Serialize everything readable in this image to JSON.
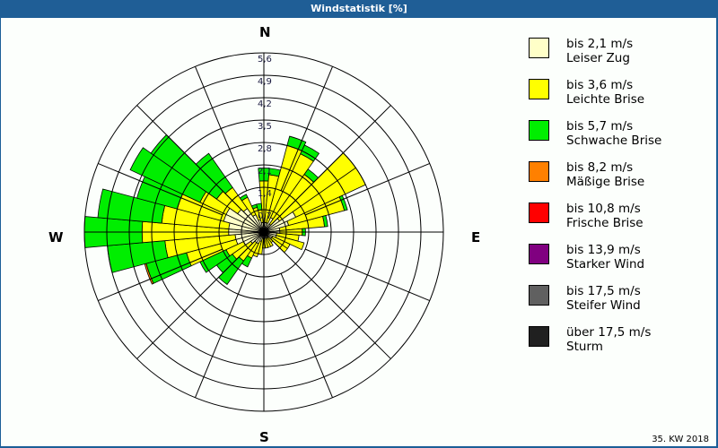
{
  "window": {
    "title": "Windstatistik [%]"
  },
  "compass": {
    "n": "N",
    "e": "E",
    "s": "S",
    "w": "W"
  },
  "footer": {
    "week": "35. KW 2018"
  },
  "legend": [
    {
      "range": "bis 2,1 m/s",
      "name": "Leiser Zug",
      "color": "#ffffc8"
    },
    {
      "range": "bis 3,6 m/s",
      "name": "Leichte Brise",
      "color": "#ffff00"
    },
    {
      "range": "bis 5,7 m/s",
      "name": "Schwache Brise",
      "color": "#00ee00"
    },
    {
      "range": "bis 8,2 m/s",
      "name": "Mäßige Brise",
      "color": "#ff8000"
    },
    {
      "range": "bis 10,8 m/s",
      "name": "Frische Brise",
      "color": "#ff0000"
    },
    {
      "range": "bis 13,9 m/s",
      "name": "Starker Wind",
      "color": "#800080"
    },
    {
      "range": "bis 17,5 m/s",
      "name": "Steifer Wind",
      "color": "#606060"
    },
    {
      "range": "über 17,5 m/s",
      "name": "Sturm",
      "color": "#202020"
    }
  ],
  "chart_data": {
    "type": "polar-stacked-bar",
    "title": "Windstatistik [%]",
    "subtitle": "35. KW 2018",
    "rlabels": [
      "0,7",
      "1,4",
      "2,1",
      "2,8",
      "3,5",
      "4,2",
      "4,9",
      "5,6"
    ],
    "rlim": [
      0,
      5.6
    ],
    "grid": true,
    "sector_width_deg": 10,
    "directions_deg": [
      0,
      10,
      20,
      30,
      40,
      50,
      60,
      70,
      80,
      90,
      100,
      110,
      120,
      130,
      140,
      150,
      160,
      170,
      180,
      190,
      200,
      210,
      220,
      230,
      240,
      250,
      260,
      270,
      280,
      290,
      300,
      310,
      320,
      330,
      340,
      350
    ],
    "series": [
      {
        "name": "bis 2,1 m/s (Leiser Zug)",
        "values": [
          0.3,
          0.3,
          0.3,
          0.5,
          0.3,
          0.6,
          1.1,
          0.8,
          0.5,
          0.5,
          0.4,
          0.4,
          0.3,
          0.3,
          0.2,
          0.2,
          0.2,
          0.2,
          0.2,
          0.2,
          0.3,
          0.4,
          0.4,
          0.5,
          0.7,
          0.9,
          0.9,
          1.1,
          1.1,
          1.3,
          1.3,
          1.0,
          0.9,
          0.6,
          0.4,
          0.3
        ]
      },
      {
        "name": "bis 3,6 m/s (Leichte Brise)",
        "values": [
          1.3,
          1.5,
          2.5,
          2.2,
          1.9,
          2.9,
          2.4,
          1.8,
          1.4,
          0.7,
          0.7,
          0.9,
          0.6,
          0.6,
          0.2,
          0.3,
          0.3,
          0.3,
          0.3,
          0.5,
          0.5,
          0.5,
          0.7,
          0.7,
          0.6,
          1.6,
          2.2,
          2.7,
          2.1,
          1.5,
          0.9,
          0.8,
          0.8,
          0.6,
          0.4,
          0.4
        ]
      },
      {
        "name": "bis 5,7 m/s (Schwache Brise)",
        "values": [
          0.4,
          0.2,
          0.3,
          0.3,
          0.2,
          0.0,
          0.0,
          0.1,
          0.1,
          0.1,
          0.0,
          0.0,
          0.0,
          0.0,
          0.0,
          0.0,
          0.0,
          0.0,
          0.0,
          0.0,
          0.0,
          0.3,
          0.9,
          0.6,
          0.9,
          1.3,
          1.8,
          1.8,
          2.0,
          1.3,
          2.4,
          2.5,
          1.3,
          0.1,
          0.1,
          0.2
        ]
      },
      {
        "name": "bis 8,2 m/s (Mäßige Brise)",
        "values": [
          0,
          0,
          0,
          0,
          0,
          0,
          0,
          0,
          0,
          0,
          0,
          0,
          0,
          0,
          0,
          0,
          0,
          0,
          0,
          0,
          0,
          0,
          0,
          0,
          0,
          0.05,
          0,
          0,
          0,
          0,
          0,
          0,
          0,
          0,
          0,
          0
        ]
      },
      {
        "name": "bis 10,8 m/s (Frische Brise)",
        "values": [
          0,
          0,
          0,
          0,
          0,
          0,
          0,
          0,
          0,
          0,
          0,
          0,
          0,
          0,
          0,
          0,
          0,
          0,
          0,
          0,
          0,
          0,
          0,
          0,
          0,
          0,
          0,
          0,
          0,
          0,
          0,
          0,
          0,
          0,
          0,
          0
        ]
      },
      {
        "name": "bis 13,9 m/s (Starker Wind)",
        "values": [
          0,
          0,
          0,
          0,
          0,
          0,
          0,
          0,
          0,
          0,
          0,
          0,
          0,
          0,
          0,
          0,
          0,
          0,
          0,
          0,
          0,
          0,
          0,
          0,
          0,
          0,
          0,
          0,
          0,
          0,
          0,
          0,
          0,
          0,
          0,
          0
        ]
      },
      {
        "name": "bis 17,5 m/s (Steifer Wind)",
        "values": [
          0,
          0,
          0,
          0,
          0,
          0,
          0,
          0,
          0,
          0,
          0,
          0,
          0,
          0,
          0,
          0,
          0,
          0,
          0,
          0,
          0,
          0,
          0,
          0,
          0,
          0,
          0,
          0,
          0,
          0,
          0,
          0,
          0,
          0,
          0,
          0
        ]
      },
      {
        "name": "über 17,5 m/s (Sturm)",
        "values": [
          0,
          0,
          0,
          0,
          0,
          0,
          0,
          0,
          0,
          0,
          0,
          0,
          0,
          0,
          0,
          0,
          0,
          0,
          0,
          0,
          0,
          0,
          0,
          0,
          0,
          0,
          0,
          0,
          0,
          0,
          0,
          0,
          0,
          0,
          0,
          0
        ]
      }
    ],
    "legend_position": "right"
  }
}
